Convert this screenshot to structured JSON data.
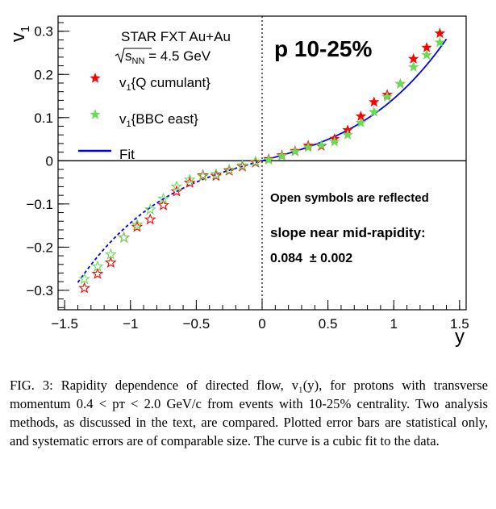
{
  "chart_data": {
    "type": "scatter",
    "ylabel_main": "v",
    "ylabel_sub": "1",
    "xlabel": "y",
    "xlim": [
      -1.55,
      1.55
    ],
    "ylim": [
      -0.345,
      0.335
    ],
    "x_ticks": [
      -1.5,
      -1,
      -0.5,
      0,
      0.5,
      1,
      1.5
    ],
    "x_tick_labels": [
      "−1.5",
      "−1",
      "−0.5",
      "0",
      "0.5",
      "1",
      "1.5"
    ],
    "y_ticks": [
      -0.3,
      -0.2,
      -0.1,
      0,
      0.1,
      0.2,
      0.3
    ],
    "y_tick_labels": [
      "−0.3",
      "−0.2",
      "−0.1",
      "0",
      "0.1",
      "0.2",
      "0.3"
    ],
    "grid": false,
    "legend_position": "top-left",
    "legend": {
      "header_line1": "STAR FXT Au+Au",
      "header_line2_sqrt": "s",
      "header_line2_sub": "NN",
      "header_line2_rest": " = 4.5 GeV",
      "entries": [
        {
          "main": "v",
          "sub": "1",
          "rest": "{Q cumulant}",
          "color": "#ff0000"
        },
        {
          "main": "v",
          "sub": "1",
          "rest": "{BBC east}",
          "color": "#66dd55"
        },
        {
          "main": "Fit",
          "sub": "",
          "rest": "",
          "color": "#0000ee"
        }
      ]
    },
    "big_label": "p 10-25%",
    "annotation_reflected": "Open symbols are reflected",
    "annotation_slope_title": "slope near mid-rapidity:",
    "annotation_slope_value": "0.084  ± 0.002",
    "colors": {
      "q_cumulant": "#ff0000",
      "bbc_east": "#66dd55",
      "fit": "#0000ee"
    },
    "fit_coefficients": {
      "linear": 0.084,
      "cubic": 0.0599
    },
    "series": [
      {
        "name": "v1{Q cumulant}",
        "marker": "filled-star",
        "color": "#ff0000",
        "points": [
          [
            0.05,
            0.004
          ],
          [
            0.15,
            0.013
          ],
          [
            0.25,
            0.023
          ],
          [
            0.35,
            0.035
          ],
          [
            0.45,
            0.034
          ],
          [
            0.55,
            0.051
          ],
          [
            0.65,
            0.071
          ],
          [
            0.75,
            0.103
          ],
          [
            0.85,
            0.136
          ],
          [
            0.95,
            0.153
          ],
          [
            1.05,
            0.178
          ],
          [
            1.15,
            0.236
          ],
          [
            1.25,
            0.262
          ],
          [
            1.35,
            0.295
          ]
        ]
      },
      {
        "name": "v1{BBC east}",
        "marker": "filled-star",
        "color": "#66dd55",
        "points": [
          [
            0.05,
            0.002
          ],
          [
            0.15,
            0.011
          ],
          [
            0.25,
            0.021
          ],
          [
            0.35,
            0.031
          ],
          [
            0.45,
            0.036
          ],
          [
            0.55,
            0.044
          ],
          [
            0.65,
            0.06
          ],
          [
            0.75,
            0.088
          ],
          [
            0.85,
            0.113
          ],
          [
            0.95,
            0.148
          ],
          [
            1.05,
            0.178
          ],
          [
            1.15,
            0.217
          ],
          [
            1.25,
            0.245
          ],
          [
            1.35,
            0.274
          ]
        ]
      },
      {
        "name": "v1{Q cumulant} reflected",
        "marker": "open-star",
        "color": "#ff0000",
        "points": [
          [
            -0.05,
            -0.004
          ],
          [
            -0.15,
            -0.013
          ],
          [
            -0.25,
            -0.023
          ],
          [
            -0.35,
            -0.035
          ],
          [
            -0.45,
            -0.034
          ],
          [
            -0.55,
            -0.051
          ],
          [
            -0.65,
            -0.071
          ],
          [
            -0.75,
            -0.103
          ],
          [
            -0.85,
            -0.136
          ],
          [
            -0.95,
            -0.153
          ],
          [
            -1.05,
            -0.178
          ],
          [
            -1.15,
            -0.236
          ],
          [
            -1.25,
            -0.262
          ],
          [
            -1.35,
            -0.295
          ]
        ]
      },
      {
        "name": "v1{BBC east} reflected",
        "marker": "open-star",
        "color": "#66dd55",
        "points": [
          [
            -0.05,
            -0.002
          ],
          [
            -0.15,
            -0.011
          ],
          [
            -0.25,
            -0.021
          ],
          [
            -0.35,
            -0.031
          ],
          [
            -0.45,
            -0.036
          ],
          [
            -0.55,
            -0.044
          ],
          [
            -0.65,
            -0.06
          ],
          [
            -0.75,
            -0.088
          ],
          [
            -0.85,
            -0.113
          ],
          [
            -0.95,
            -0.148
          ],
          [
            -1.05,
            -0.178
          ],
          [
            -1.15,
            -0.217
          ],
          [
            -1.25,
            -0.245
          ],
          [
            -1.35,
            -0.274
          ]
        ]
      }
    ]
  },
  "caption": {
    "label": "FIG. 3:",
    "text": " Rapidity dependence of directed flow, v₁(y), for protons with transverse momentum 0.4 < pᴛ < 2.0 GeV/c from events with 10-25% centrality. Two analysis methods, as discussed in the text, are compared. Plotted error bars are statistical only, and systematic errors are of comparable size. The curve is a cubic fit to the data."
  }
}
